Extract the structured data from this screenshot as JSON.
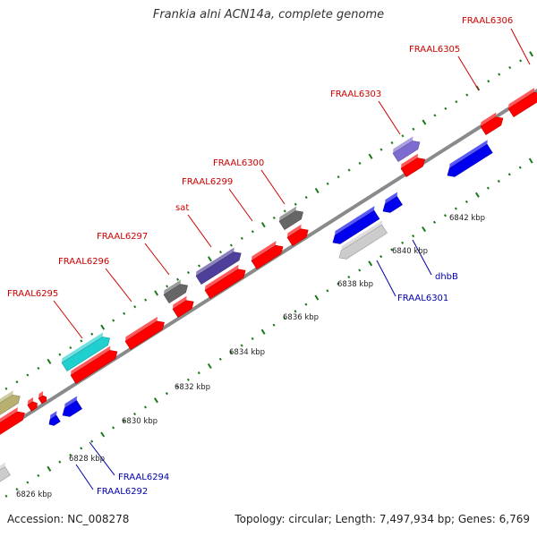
{
  "title": "Frankia alni ACN14a, complete genome",
  "footer": {
    "accession": "Accession: NC_008278",
    "stats": "Topology: circular; Length: 7,497,934 bp; Genes: 6,769"
  },
  "colors": {
    "backbone": "#8a8a8a",
    "tick": "#1a7a1a",
    "label_top": "#cc0000",
    "label_bottom": "#0000aa",
    "gene_red": "#ff0000",
    "gene_blue": "#0000ee",
    "gene_gray": "#666666",
    "gene_lightgray": "#cccccc",
    "gene_cyan": "#20d0d0",
    "gene_olive": "#b7b070",
    "gene_darkpurple": "#4d3f9a",
    "gene_lavender": "#7d6bd0"
  },
  "scale_labels": [
    "6826 kbp",
    "6828 kbp",
    "6830 kbp",
    "6832 kbp",
    "6834 kbp",
    "6836 kbp",
    "6838 kbp",
    "6840 kbp",
    "6842 kbp"
  ],
  "gene_labels_top": [
    "FRAAL6295",
    "FRAAL6296",
    "FRAAL6297",
    "sat",
    "FRAAL6299",
    "FRAAL6300",
    "FRAAL6303",
    "FRAAL6305",
    "FRAAL6306"
  ],
  "gene_labels_bottom": [
    "FRAAL6292",
    "FRAAL6294",
    "FRAAL6301",
    "dhbB"
  ]
}
